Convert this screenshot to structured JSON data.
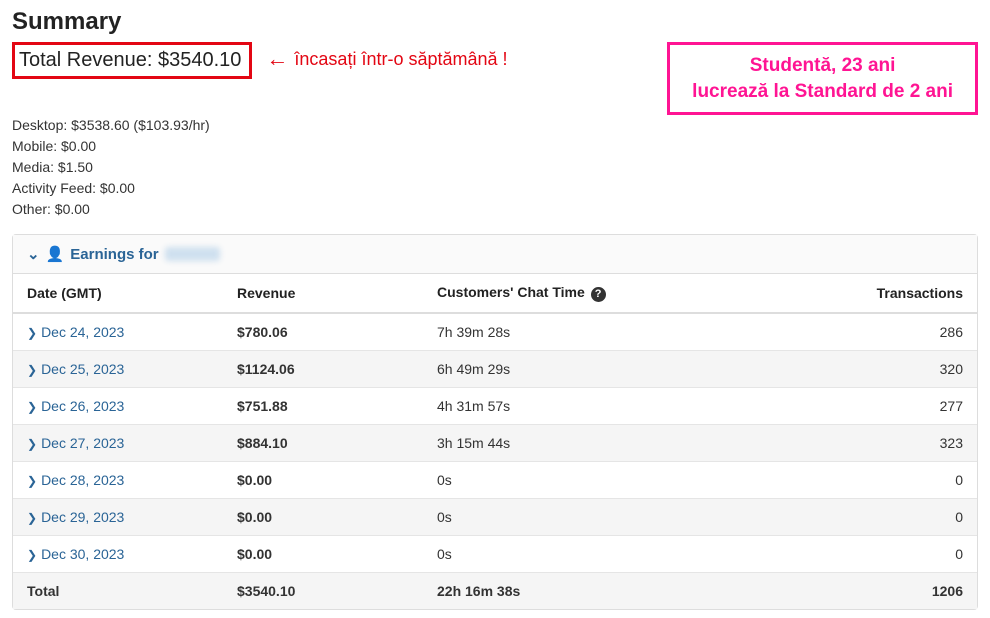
{
  "summary": {
    "title": "Summary",
    "total_label": "Total Revenue:",
    "total_value": "$3540.10",
    "annotation_arrow": "←",
    "annotation_text": "încasați într-o săptămână !",
    "badge_line1": "Studentă, 23 ani",
    "badge_line2": "lucrează la Standard de 2 ani",
    "lines": {
      "desktop": "Desktop: $3538.60 ($103.93/hr)",
      "mobile": "Mobile: $0.00",
      "media": "Media: $1.50",
      "activity_feed": "Activity Feed: $0.00",
      "other": "Other: $0.00"
    }
  },
  "panel": {
    "chevron_glyph": "❯",
    "collapse_glyph": "⌄",
    "person_glyph": "👤",
    "title_prefix": "Earnings for"
  },
  "table": {
    "headers": {
      "date": "Date (GMT)",
      "revenue": "Revenue",
      "chat": "Customers' Chat Time",
      "transactions": "Transactions"
    },
    "help_glyph": "?",
    "rows": [
      {
        "date": "Dec 24, 2023",
        "revenue": "$780.06",
        "chat": "7h 39m 28s",
        "tx": "286"
      },
      {
        "date": "Dec 25, 2023",
        "revenue": "$1124.06",
        "chat": "6h 49m 29s",
        "tx": "320"
      },
      {
        "date": "Dec 26, 2023",
        "revenue": "$751.88",
        "chat": "4h 31m 57s",
        "tx": "277"
      },
      {
        "date": "Dec 27, 2023",
        "revenue": "$884.10",
        "chat": "3h 15m 44s",
        "tx": "323"
      },
      {
        "date": "Dec 28, 2023",
        "revenue": "$0.00",
        "chat": "0s",
        "tx": "0"
      },
      {
        "date": "Dec 29, 2023",
        "revenue": "$0.00",
        "chat": "0s",
        "tx": "0"
      },
      {
        "date": "Dec 30, 2023",
        "revenue": "$0.00",
        "chat": "0s",
        "tx": "0"
      }
    ],
    "total": {
      "label": "Total",
      "revenue": "$3540.10",
      "chat": "22h 16m 38s",
      "tx": "1206"
    }
  },
  "style": {
    "highlight_border": "#e30613",
    "badge_border": "#ff1493",
    "link_color": "#2a6496"
  }
}
